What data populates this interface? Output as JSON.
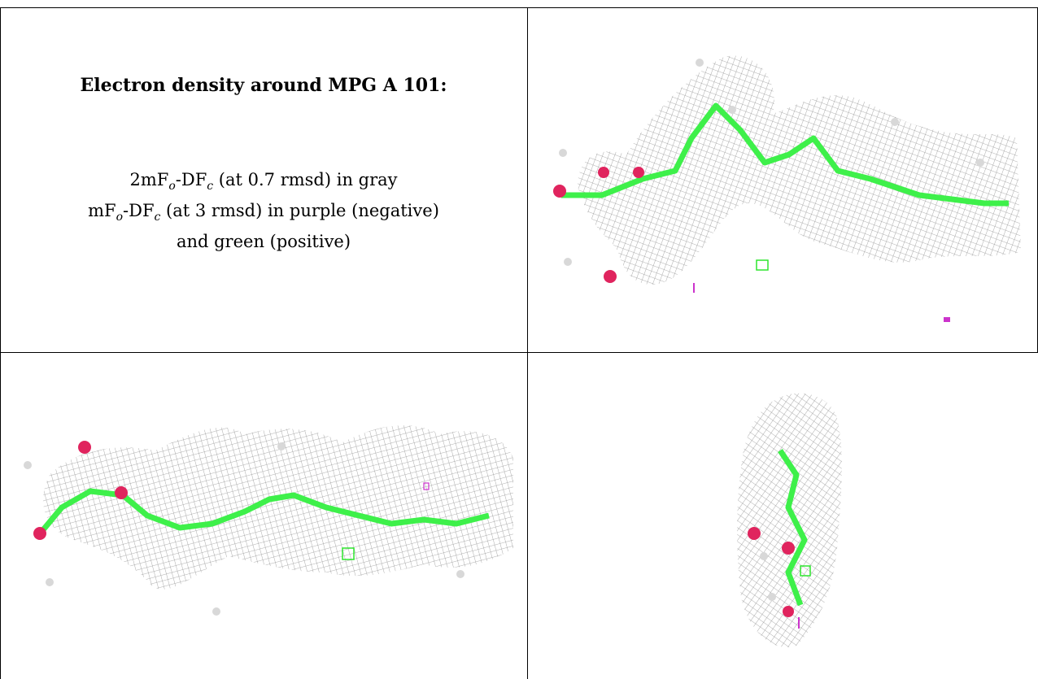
{
  "caption": {
    "title": "Electron density around MPG A 101:",
    "line1": {
      "prefix": "2mF",
      "sub1": "o",
      "mid": "-DF",
      "sub2": "c",
      "suffix": " (at 0.7 rmsd) in gray"
    },
    "line2": {
      "prefix": "mF",
      "sub1": "o",
      "mid": "-DF",
      "sub2": "c",
      "suffix": " (at 3 rmsd) in purple (negative)"
    },
    "line3": "and green (positive)"
  },
  "colors": {
    "density_2fofc": "#9a9a9a",
    "fofc_positive": "#2ee62e",
    "fofc_negative": "#cc33cc",
    "carbon": "#3ef04a",
    "oxygen": "#e0245e",
    "hydrogen": "#d8d8d8"
  },
  "panels": {
    "top_right": "density-view-1",
    "bottom_left": "density-view-2",
    "bottom_right": "density-view-3"
  }
}
